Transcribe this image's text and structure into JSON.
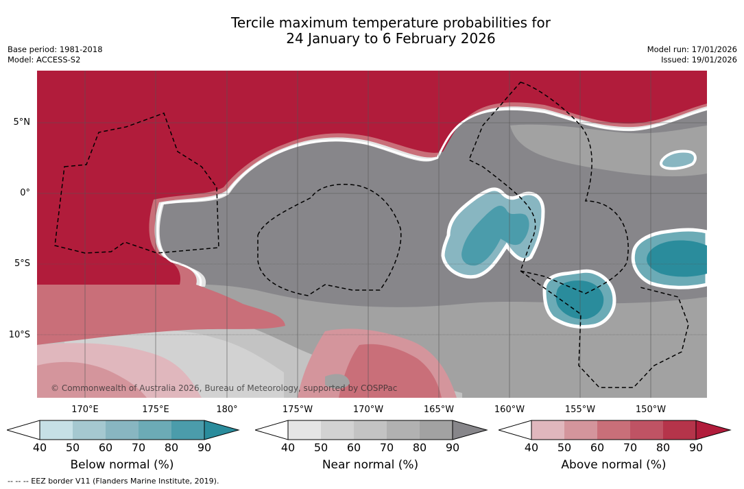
{
  "title": {
    "line1": "Tercile maximum temperature probabilities for",
    "line2": "24 January to 6 February 2026"
  },
  "meta": {
    "base_period": "Base period: 1981-2018",
    "model": "Model: ACCESS-S2",
    "model_run": "Model run: 17/01/2026",
    "issued": "Issued: 19/01/2026"
  },
  "map": {
    "lat_labels": [
      "5°N",
      "0°",
      "5°S",
      "10°S"
    ],
    "lon_labels": [
      "170°E",
      "175°E",
      "180°",
      "175°W",
      "170°W",
      "165°W",
      "160°W",
      "155°W",
      "150°W"
    ],
    "copyright": "© Commonwealth of Australia 2026, Bureau of Meteorology, supported by COSPPac",
    "colors": {
      "above": [
        "#e0b7bd",
        "#d4959c",
        "#c96f79",
        "#bf5364",
        "#b5344a",
        "#b11c3b"
      ],
      "near": [
        "#e5e5e5",
        "#d2d2d2",
        "#c3c3c3",
        "#b1b1b1",
        "#a2a2a2",
        "#87868a"
      ],
      "below": [
        "#c6e0e6",
        "#a5c8d0",
        "#88b6c1",
        "#6cabb6",
        "#4b9cab",
        "#2a8c9c"
      ]
    }
  },
  "legends": [
    {
      "id": "below",
      "title": "Below normal (%)",
      "ticks": [
        "40",
        "50",
        "60",
        "70",
        "80",
        "90"
      ]
    },
    {
      "id": "near",
      "title": "Near normal (%)",
      "ticks": [
        "40",
        "50",
        "60",
        "70",
        "80",
        "90"
      ]
    },
    {
      "id": "above",
      "title": "Above normal (%)",
      "ticks": [
        "40",
        "50",
        "60",
        "70",
        "80",
        "90"
      ]
    }
  ],
  "eez_note": "--  --  -- EEZ border V11 (Flanders Marine Institute, 2019)."
}
